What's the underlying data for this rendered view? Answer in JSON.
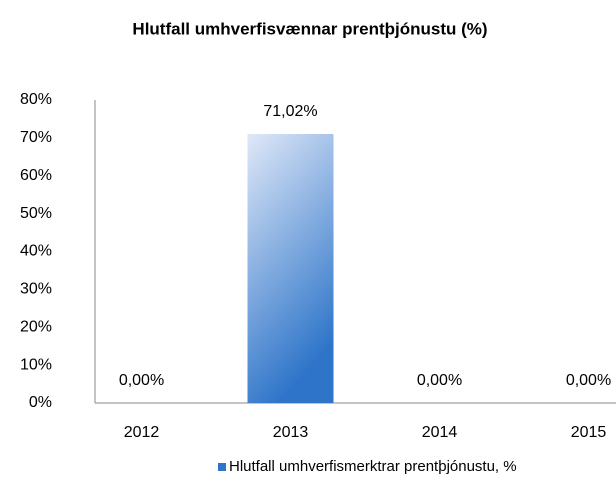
{
  "chart_data": {
    "type": "bar",
    "title": "Hlutfall umhverfisvænnar prentþjónustu (%)",
    "categories": [
      "2012",
      "2013",
      "2014",
      "2015"
    ],
    "series": [
      {
        "name": "Hlutfall umhverfismerktrar prentþjónustu, %",
        "color": "#2e75c9",
        "values": [
          0,
          71.02,
          0,
          0
        ],
        "value_labels": [
          "0,00%",
          "71,02%",
          "0,00%",
          "0,00%"
        ]
      }
    ],
    "ylim": [
      0,
      80
    ],
    "yticks": [
      {
        "value": 0,
        "label": "0%"
      },
      {
        "value": 10,
        "label": "10%"
      },
      {
        "value": 20,
        "label": "20%"
      },
      {
        "value": 30,
        "label": "30%"
      },
      {
        "value": 40,
        "label": "40%"
      },
      {
        "value": 50,
        "label": "50%"
      },
      {
        "value": 60,
        "label": "60%"
      },
      {
        "value": 70,
        "label": "70%"
      },
      {
        "value": 80,
        "label": "80%"
      }
    ],
    "grid": false,
    "legend": "bottom-right"
  }
}
